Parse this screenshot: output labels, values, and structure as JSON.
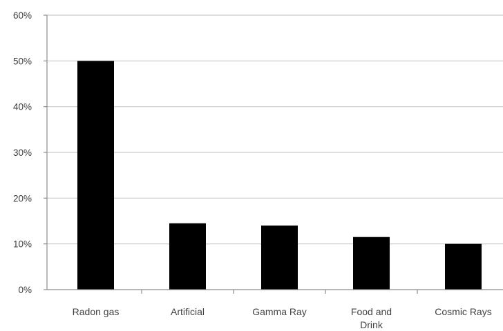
{
  "chart_data": {
    "type": "bar",
    "title": "",
    "xlabel": "",
    "ylabel": "",
    "categories": [
      [
        "Radon gas"
      ],
      [
        "Artificial"
      ],
      [
        "Gamma Ray"
      ],
      [
        "Food and",
        "Drink"
      ],
      [
        "Cosmic Rays"
      ]
    ],
    "values": [
      50,
      14.5,
      14,
      11.5,
      10
    ],
    "ylim": [
      0,
      60
    ],
    "y_ticks": [
      0,
      10,
      20,
      30,
      40,
      50,
      60
    ],
    "y_tick_format": "percent",
    "grid": true,
    "legend": "none",
    "colors": {
      "bar": "#000000",
      "grid": "#c9c9c9",
      "axis": "#8c8c8c",
      "text": "#404040"
    }
  }
}
